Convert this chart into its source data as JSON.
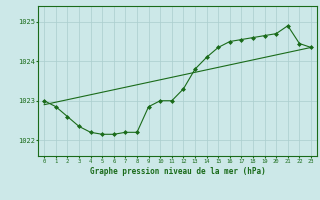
{
  "title": "Graphe pression niveau de la mer (hPa)",
  "bg_color": "#cce8e8",
  "line_color": "#1a6b1a",
  "marker_color": "#1a6b1a",
  "grid_color": "#aacece",
  "axis_color": "#1a6b1a",
  "text_color": "#1a6b1a",
  "xlim": [
    -0.5,
    23.5
  ],
  "ylim": [
    1021.6,
    1025.4
  ],
  "yticks": [
    1022,
    1023,
    1024,
    1025
  ],
  "xticks": [
    0,
    1,
    2,
    3,
    4,
    5,
    6,
    7,
    8,
    9,
    10,
    11,
    12,
    13,
    14,
    15,
    16,
    17,
    18,
    19,
    20,
    21,
    22,
    23
  ],
  "hours": [
    0,
    1,
    2,
    3,
    4,
    5,
    6,
    7,
    8,
    9,
    10,
    11,
    12,
    13,
    14,
    15,
    16,
    17,
    18,
    19,
    20,
    21,
    22,
    23
  ],
  "values": [
    1023.0,
    1022.85,
    1022.6,
    1022.35,
    1022.2,
    1022.15,
    1022.15,
    1022.2,
    1022.2,
    1022.85,
    1023.0,
    1023.0,
    1023.3,
    1023.8,
    1024.1,
    1024.35,
    1024.5,
    1024.55,
    1024.6,
    1024.65,
    1024.7,
    1024.9,
    1024.45,
    1024.35
  ],
  "trend_x": [
    0,
    23
  ],
  "trend_y": [
    1022.9,
    1024.35
  ]
}
